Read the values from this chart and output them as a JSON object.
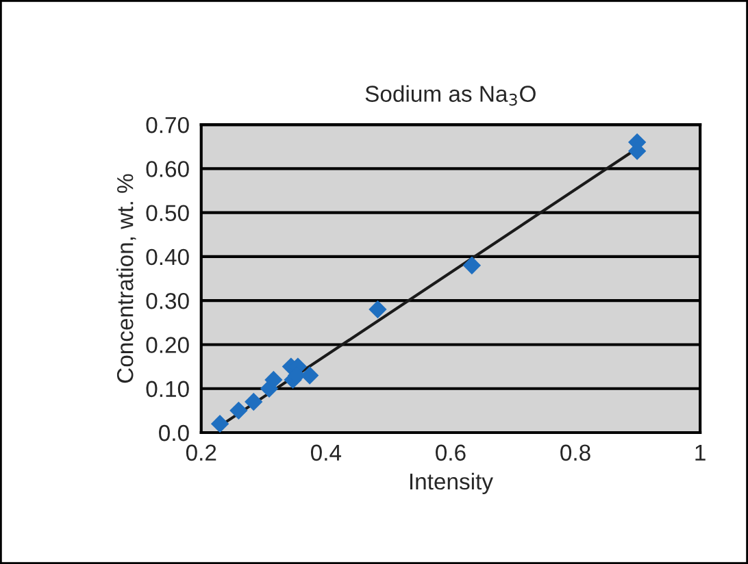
{
  "chart_data": {
    "type": "scatter",
    "title": "Sodium as Na$_{3}$O",
    "xlabel": "Intensity",
    "ylabel": "Concentration, wt. %",
    "xlim": [
      0.2,
      1
    ],
    "ylim": [
      0,
      0.7
    ],
    "xticks": [
      0.2,
      0.4,
      0.6,
      0.8,
      1
    ],
    "yticks": [
      {
        "value": 0,
        "label": "0.0"
      },
      {
        "value": 0.1,
        "label": "0.10"
      },
      {
        "value": 0.2,
        "label": "0.20"
      },
      {
        "value": 0.3,
        "label": "0.30"
      },
      {
        "value": 0.4,
        "label": "0.40"
      },
      {
        "value": 0.5,
        "label": "0.50"
      },
      {
        "value": 0.6,
        "label": "0.60"
      },
      {
        "value": 0.7,
        "label": "0.70"
      }
    ],
    "grid": "y",
    "series": [
      {
        "marker": "diamond",
        "color": "#1f6fc0",
        "x": [
          0.23,
          0.26,
          0.284,
          0.309,
          0.316,
          0.344,
          0.355,
          0.347,
          0.353,
          0.374,
          0.483,
          0.634,
          0.899,
          0.899
        ],
        "values": [
          0.02,
          0.05,
          0.07,
          0.1,
          0.12,
          0.15,
          0.15,
          0.12,
          0.13,
          0.13,
          0.28,
          0.38,
          0.66,
          0.64
        ]
      },
      {
        "type": "line",
        "color": "#1a1a1a",
        "x": [
          0.23,
          0.9
        ],
        "values": [
          0.015,
          0.647
        ]
      }
    ]
  }
}
